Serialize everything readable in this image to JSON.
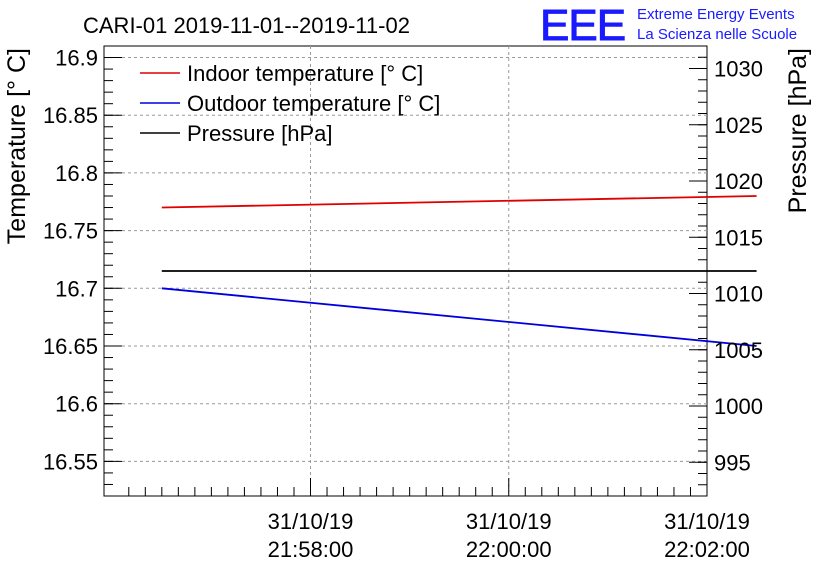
{
  "chart_data": {
    "type": "line",
    "title": "CARI-01 2019-11-01--2019-11-02",
    "logo": {
      "text": "EEE",
      "line1": "Extreme Energy Events",
      "line2": "La Scienza nelle Scuole",
      "color": "#1a1aff"
    },
    "ylabel_left": "Temperature [° C]",
    "ylabel_right": "Pressure [hPa]",
    "ylim_left": [
      16.52,
      16.91
    ],
    "ylim_right": [
      992.0,
      1032.0
    ],
    "xlim": [
      -16.5,
      20
    ],
    "x_ticks": [
      {
        "value": -4,
        "line1": "31/10/19",
        "line2": "21:58:00"
      },
      {
        "value": 8,
        "line1": "31/10/19",
        "line2": "22:00:00"
      },
      {
        "value": 20,
        "line1": "31/10/19",
        "line2": "22:02:00"
      }
    ],
    "y_ticks_left": [
      16.55,
      16.6,
      16.65,
      16.7,
      16.75,
      16.8,
      16.85,
      16.9
    ],
    "y_tick_labels_left": [
      "16.55",
      "16.6",
      "16.65",
      "16.7",
      "16.75",
      "16.8",
      "16.85",
      "16.9"
    ],
    "y_ticks_right": [
      995,
      1000,
      1005,
      1010,
      1015,
      1020,
      1025,
      1030
    ],
    "y_tick_labels_right": [
      "995",
      "1000",
      "1005",
      "1010",
      "1015",
      "1020",
      "1025",
      "1030"
    ],
    "grid": true,
    "legend_position": "top-left",
    "series": [
      {
        "name": "Indoor temperature [° C]",
        "axis": "left",
        "color": "#e00000",
        "x": [
          -13,
          23
        ],
        "values": [
          16.77,
          16.78
        ]
      },
      {
        "name": "Outdoor temperature [° C]",
        "axis": "left",
        "color": "#0000dd",
        "x": [
          -13,
          23
        ],
        "values": [
          16.7,
          16.65
        ]
      },
      {
        "name": "Pressure [hPa]",
        "axis": "right",
        "color": "#000000",
        "x": [
          -13,
          23
        ],
        "values": [
          1012,
          1012
        ]
      }
    ]
  }
}
